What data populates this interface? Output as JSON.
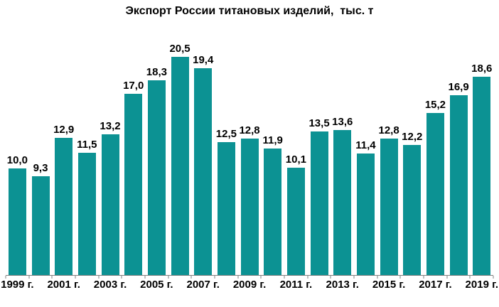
{
  "chart_data": {
    "type": "bar",
    "title": "Экспорт России титановых изделий,  тыс. т",
    "categories": [
      "1999",
      "2000",
      "2001",
      "2002",
      "2003",
      "2004",
      "2005",
      "2006",
      "2007",
      "2008",
      "2009",
      "2010",
      "2011",
      "2012",
      "2013",
      "2014",
      "2015",
      "2016",
      "2017",
      "2018",
      "2019"
    ],
    "values": [
      10.0,
      9.3,
      12.9,
      11.5,
      13.2,
      17.0,
      18.3,
      20.5,
      19.4,
      12.5,
      12.8,
      11.9,
      10.1,
      13.5,
      13.6,
      11.4,
      12.8,
      12.2,
      15.2,
      16.9,
      18.6
    ],
    "value_labels": [
      "10,0",
      "9,3",
      "12,9",
      "11,5",
      "13,2",
      "17,0",
      "18,3",
      "20,5",
      "19,4",
      "12,5",
      "12,8",
      "11,9",
      "10,1",
      "13,5",
      "13,6",
      "11,4",
      "12,8",
      "12,2",
      "15,2",
      "16,9",
      "18,6"
    ],
    "x_tick_labels": [
      "1999 г.",
      "2001 г.",
      "2003 г.",
      "2005 г.",
      "2007 г.",
      "2009 г.",
      "2011 г.",
      "2013 г.",
      "2015 г.",
      "2017 г.",
      "2019 г."
    ],
    "xlabel": "",
    "ylabel": "",
    "ylim": [
      0,
      22
    ],
    "grid": false,
    "legend": false,
    "bar_color": "#0C9293",
    "axis_color": "#808080",
    "label_color": "#000000",
    "background_color": "#FFFFFF"
  }
}
